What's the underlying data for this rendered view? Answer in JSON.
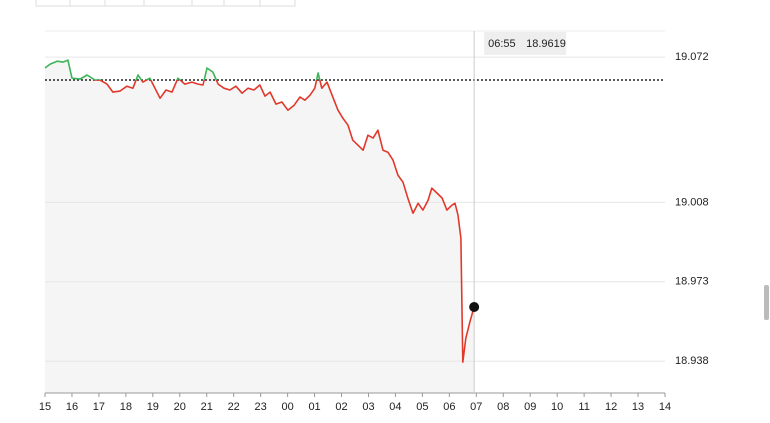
{
  "chart_data": {
    "type": "line",
    "x": [
      0,
      0.19,
      0.45,
      0.67,
      0.85,
      1.0,
      1.3,
      1.56,
      1.85,
      2.04,
      2.3,
      2.52,
      2.78,
      3.04,
      3.26,
      3.45,
      3.63,
      3.89,
      4.08,
      4.27,
      4.49,
      4.71,
      4.93,
      5.19,
      5.45,
      5.68,
      5.86,
      6.01,
      6.23,
      6.42,
      6.64,
      6.86,
      7.08,
      7.31,
      7.53,
      7.75,
      7.97,
      8.16,
      8.35,
      8.57,
      8.79,
      9.01,
      9.24,
      9.46,
      9.64,
      9.83,
      10.01,
      10.13,
      10.27,
      10.46,
      10.65,
      10.87,
      11.05,
      11.24,
      11.42,
      11.61,
      11.8,
      11.98,
      12.17,
      12.35,
      12.54,
      12.72,
      12.91,
      13.09,
      13.28,
      13.46,
      13.65,
      13.84,
      14.02,
      14.21,
      14.35,
      14.54,
      14.73,
      14.91,
      15.1,
      15.21,
      15.32,
      15.43,
      15.5,
      15.61,
      15.76,
      15.92
    ],
    "values": [
      19.0672,
      19.0689,
      19.0702,
      19.0698,
      19.0707,
      19.0627,
      19.0623,
      19.0641,
      19.0619,
      19.0619,
      19.0601,
      19.0566,
      19.057,
      19.0592,
      19.0583,
      19.0641,
      19.061,
      19.0627,
      19.0583,
      19.0539,
      19.0575,
      19.0566,
      19.0627,
      19.0601,
      19.061,
      19.0601,
      19.0597,
      19.0672,
      19.0654,
      19.0601,
      19.0583,
      19.0575,
      19.0592,
      19.0561,
      19.0583,
      19.0575,
      19.0597,
      19.0548,
      19.0566,
      19.0513,
      19.0522,
      19.0486,
      19.0508,
      19.0544,
      19.053,
      19.0552,
      19.0583,
      19.065,
      19.0583,
      19.061,
      19.0552,
      19.0486,
      19.0451,
      19.042,
      19.0354,
      19.0332,
      19.031,
      19.0376,
      19.0363,
      19.0398,
      19.031,
      19.0301,
      19.0266,
      19.02,
      19.0169,
      19.0099,
      19.0032,
      19.0076,
      19.0046,
      19.009,
      19.0143,
      19.0121,
      19.0099,
      19.0046,
      19.0068,
      19.0076,
      19.0024,
      18.9922,
      18.9376,
      18.9481,
      18.9552,
      18.9619
    ],
    "color_above": "#3cb557",
    "color_below": "#e0392b",
    "reference_line": 19.0619,
    "xlim": [
      0,
      23
    ],
    "xticks": [
      {
        "value": 0,
        "label": "15"
      },
      {
        "value": 1,
        "label": "16"
      },
      {
        "value": 2,
        "label": "17"
      },
      {
        "value": 3,
        "label": "18"
      },
      {
        "value": 4,
        "label": "19"
      },
      {
        "value": 5,
        "label": "20"
      },
      {
        "value": 6,
        "label": "21"
      },
      {
        "value": 7,
        "label": "22"
      },
      {
        "value": 8,
        "label": "23"
      },
      {
        "value": 9,
        "label": "00"
      },
      {
        "value": 10,
        "label": "01"
      },
      {
        "value": 11,
        "label": "02"
      },
      {
        "value": 12,
        "label": "03"
      },
      {
        "value": 13,
        "label": "04"
      },
      {
        "value": 14,
        "label": "05"
      },
      {
        "value": 15,
        "label": "06"
      },
      {
        "value": 16,
        "label": "07"
      },
      {
        "value": 17,
        "label": "08"
      },
      {
        "value": 18,
        "label": "09"
      },
      {
        "value": 19,
        "label": "10"
      },
      {
        "value": 20,
        "label": "11"
      },
      {
        "value": 21,
        "label": "12"
      },
      {
        "value": 22,
        "label": "13"
      },
      {
        "value": 23,
        "label": "14"
      }
    ],
    "ylim": [
      18.924,
      19.0835
    ],
    "yticks": [
      19.072,
      19.008,
      18.973,
      18.938
    ],
    "grid": true,
    "crosshair": {
      "x": 15.92,
      "label": "06:55",
      "value": 18.9619
    }
  }
}
